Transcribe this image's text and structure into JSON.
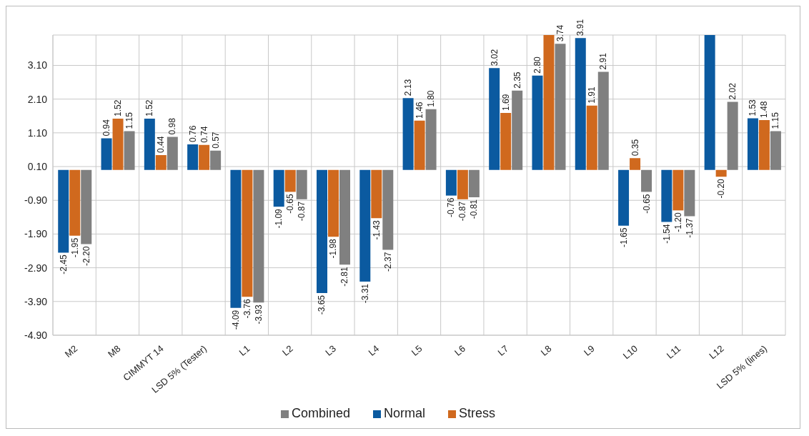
{
  "chart_data": {
    "type": "bar",
    "categories": [
      "M2",
      "M8",
      "CIMMYT 14",
      "LSD 5% (Tester)",
      "L1",
      "L2",
      "L3",
      "L4",
      "L5",
      "L6",
      "L7",
      "L8",
      "L9",
      "L10",
      "L11",
      "L12",
      "LSD 5% (lines)"
    ],
    "series": [
      {
        "name": "Normal",
        "color": "#0b5aa0",
        "values": [
          -2.45,
          0.94,
          1.52,
          0.76,
          -4.09,
          -1.09,
          -3.65,
          -3.31,
          2.13,
          -0.76,
          3.02,
          2.8,
          3.91,
          -1.65,
          -1.54,
          4.0,
          1.53
        ],
        "value_labels": [
          "-2.45",
          "0.94",
          "1.52",
          "0.76",
          "-4.09",
          "-1.09",
          "-3.65",
          "-3.31",
          "2.13",
          "-0.76",
          "3.02",
          "2.80",
          "3.91",
          "-1.65",
          "-1.54",
          null,
          "1.53"
        ]
      },
      {
        "name": "Stress",
        "color": "#d0691e",
        "values": [
          -1.95,
          1.52,
          0.44,
          0.74,
          -3.76,
          -0.65,
          -1.98,
          -1.43,
          1.46,
          -0.87,
          1.69,
          4.0,
          1.91,
          0.35,
          -1.2,
          -0.2,
          1.48
        ],
        "value_labels": [
          "-1.95",
          "1.52",
          "0.44",
          "0.74",
          "-3.76",
          "-0.65",
          "-1.98",
          "-1.43",
          "1.46",
          "-0.87",
          "1.69",
          null,
          "1.91",
          "0.35",
          "-1.20",
          "-0.20",
          "1.48"
        ]
      },
      {
        "name": "Combined",
        "color": "#808080",
        "values": [
          -2.2,
          1.15,
          0.98,
          0.57,
          -3.93,
          -0.87,
          -2.81,
          -2.37,
          1.8,
          -0.81,
          2.35,
          3.74,
          2.91,
          -0.65,
          -1.37,
          2.02,
          1.15
        ],
        "value_labels": [
          "-2.20",
          "1.15",
          "0.98",
          "0.57",
          "-3.93",
          "-0.87",
          "-2.81",
          "-2.37",
          "1.80",
          "-0.81",
          "2.35",
          "3.74",
          "2.91",
          "-0.65",
          "-1.37",
          "2.02",
          "1.15"
        ]
      }
    ],
    "ylim": [
      -4.9,
      4.0
    ],
    "yticks": [
      {
        "value": -4.9,
        "label": "-4.90"
      },
      {
        "value": -3.9,
        "label": "-3.90"
      },
      {
        "value": -2.9,
        "label": "-2.90"
      },
      {
        "value": -1.9,
        "label": "-1.90"
      },
      {
        "value": -0.9,
        "label": "-0.90"
      },
      {
        "value": 0.1,
        "label": "0.10"
      },
      {
        "value": 1.1,
        "label": "1.10"
      },
      {
        "value": 2.1,
        "label": "2.10"
      },
      {
        "value": 3.1,
        "label": "3.10"
      }
    ],
    "grid": true,
    "legend": "bottom"
  }
}
